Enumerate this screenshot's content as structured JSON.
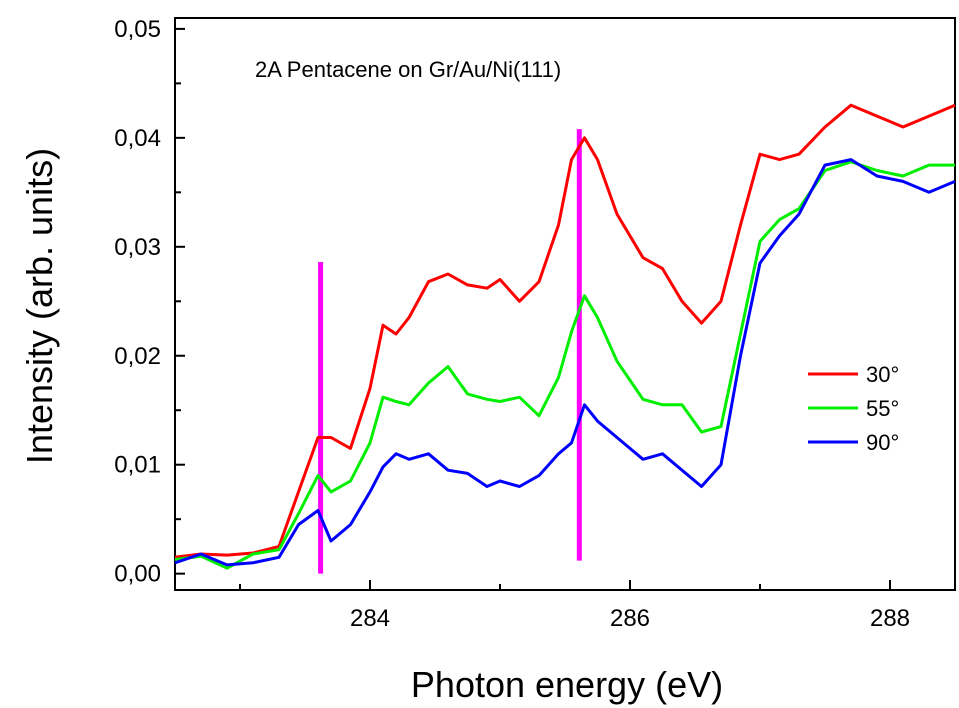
{
  "chart_data": {
    "type": "line",
    "annotation": "2A Pentacene on Gr/Au/Ni(111)",
    "xlabel": "Photon energy (eV)",
    "ylabel": "Intensity (arb. units)",
    "xlim": [
      282.5,
      288.5
    ],
    "ylim": [
      -0.0015,
      0.051
    ],
    "xticks": [
      284,
      286,
      288
    ],
    "xtick_labels": [
      "284",
      "286",
      "288"
    ],
    "yticks": [
      0,
      0.01,
      0.02,
      0.03,
      0.04,
      0.05
    ],
    "ytick_labels": [
      "0,00",
      "0,01",
      "0,02",
      "0,03",
      "0,04",
      "0,05"
    ],
    "grid": false,
    "legend_position": "right",
    "marker_lines": [
      {
        "x": 283.62,
        "y_range": [
          0.0,
          0.0286
        ],
        "color": "#ff00ff"
      },
      {
        "x": 285.61,
        "y_range": [
          0.0012,
          0.0408
        ],
        "color": "#ff00ff"
      }
    ],
    "series": [
      {
        "name": "30°",
        "color": "#ff0000",
        "x": [
          282.5,
          282.7,
          282.9,
          283.1,
          283.3,
          283.45,
          283.6,
          283.7,
          283.85,
          284.0,
          284.1,
          284.2,
          284.3,
          284.45,
          284.6,
          284.75,
          284.9,
          285.0,
          285.15,
          285.3,
          285.45,
          285.55,
          285.65,
          285.75,
          285.9,
          286.1,
          286.25,
          286.4,
          286.55,
          286.7,
          286.85,
          287.0,
          287.15,
          287.3,
          287.5,
          287.7,
          287.9,
          288.1,
          288.3,
          288.5
        ],
        "values": [
          0.0015,
          0.0018,
          0.0017,
          0.0019,
          0.0025,
          0.0075,
          0.0125,
          0.0125,
          0.0115,
          0.017,
          0.0228,
          0.022,
          0.0235,
          0.0268,
          0.0275,
          0.0265,
          0.0262,
          0.027,
          0.025,
          0.0268,
          0.032,
          0.038,
          0.04,
          0.038,
          0.033,
          0.029,
          0.028,
          0.025,
          0.023,
          0.025,
          0.032,
          0.0385,
          0.038,
          0.0385,
          0.041,
          0.043,
          0.042,
          0.041,
          0.042,
          0.043
        ]
      },
      {
        "name": "55°",
        "color": "#00ee00",
        "x": [
          282.5,
          282.7,
          282.9,
          283.1,
          283.3,
          283.45,
          283.6,
          283.7,
          283.85,
          284.0,
          284.1,
          284.2,
          284.3,
          284.45,
          284.6,
          284.75,
          284.9,
          285.0,
          285.15,
          285.3,
          285.45,
          285.55,
          285.65,
          285.75,
          285.9,
          286.1,
          286.25,
          286.4,
          286.55,
          286.7,
          286.85,
          287.0,
          287.15,
          287.3,
          287.5,
          287.7,
          287.9,
          288.1,
          288.3,
          288.5
        ],
        "values": [
          0.0013,
          0.0016,
          0.0005,
          0.0018,
          0.0022,
          0.0055,
          0.009,
          0.0075,
          0.0085,
          0.012,
          0.0162,
          0.0158,
          0.0155,
          0.0175,
          0.019,
          0.0165,
          0.016,
          0.0158,
          0.0162,
          0.0145,
          0.018,
          0.0222,
          0.0255,
          0.0235,
          0.0195,
          0.016,
          0.0155,
          0.0155,
          0.013,
          0.0135,
          0.022,
          0.0305,
          0.0325,
          0.0335,
          0.037,
          0.0378,
          0.037,
          0.0365,
          0.0375,
          0.0375
        ]
      },
      {
        "name": "90°",
        "color": "#0000ff",
        "x": [
          282.5,
          282.7,
          282.9,
          283.1,
          283.3,
          283.45,
          283.6,
          283.7,
          283.85,
          284.0,
          284.1,
          284.2,
          284.3,
          284.45,
          284.6,
          284.75,
          284.9,
          285.0,
          285.15,
          285.3,
          285.45,
          285.55,
          285.65,
          285.75,
          285.9,
          286.1,
          286.25,
          286.4,
          286.55,
          286.7,
          286.85,
          287.0,
          287.15,
          287.3,
          287.5,
          287.7,
          287.9,
          288.1,
          288.3,
          288.5
        ],
        "values": [
          0.001,
          0.0018,
          0.0008,
          0.001,
          0.0015,
          0.0045,
          0.0058,
          0.003,
          0.0045,
          0.0075,
          0.0098,
          0.011,
          0.0105,
          0.011,
          0.0095,
          0.0092,
          0.008,
          0.0085,
          0.008,
          0.009,
          0.011,
          0.012,
          0.0155,
          0.014,
          0.0125,
          0.0105,
          0.011,
          0.0095,
          0.008,
          0.01,
          0.02,
          0.0285,
          0.031,
          0.033,
          0.0375,
          0.038,
          0.0365,
          0.036,
          0.035,
          0.036
        ]
      }
    ]
  }
}
